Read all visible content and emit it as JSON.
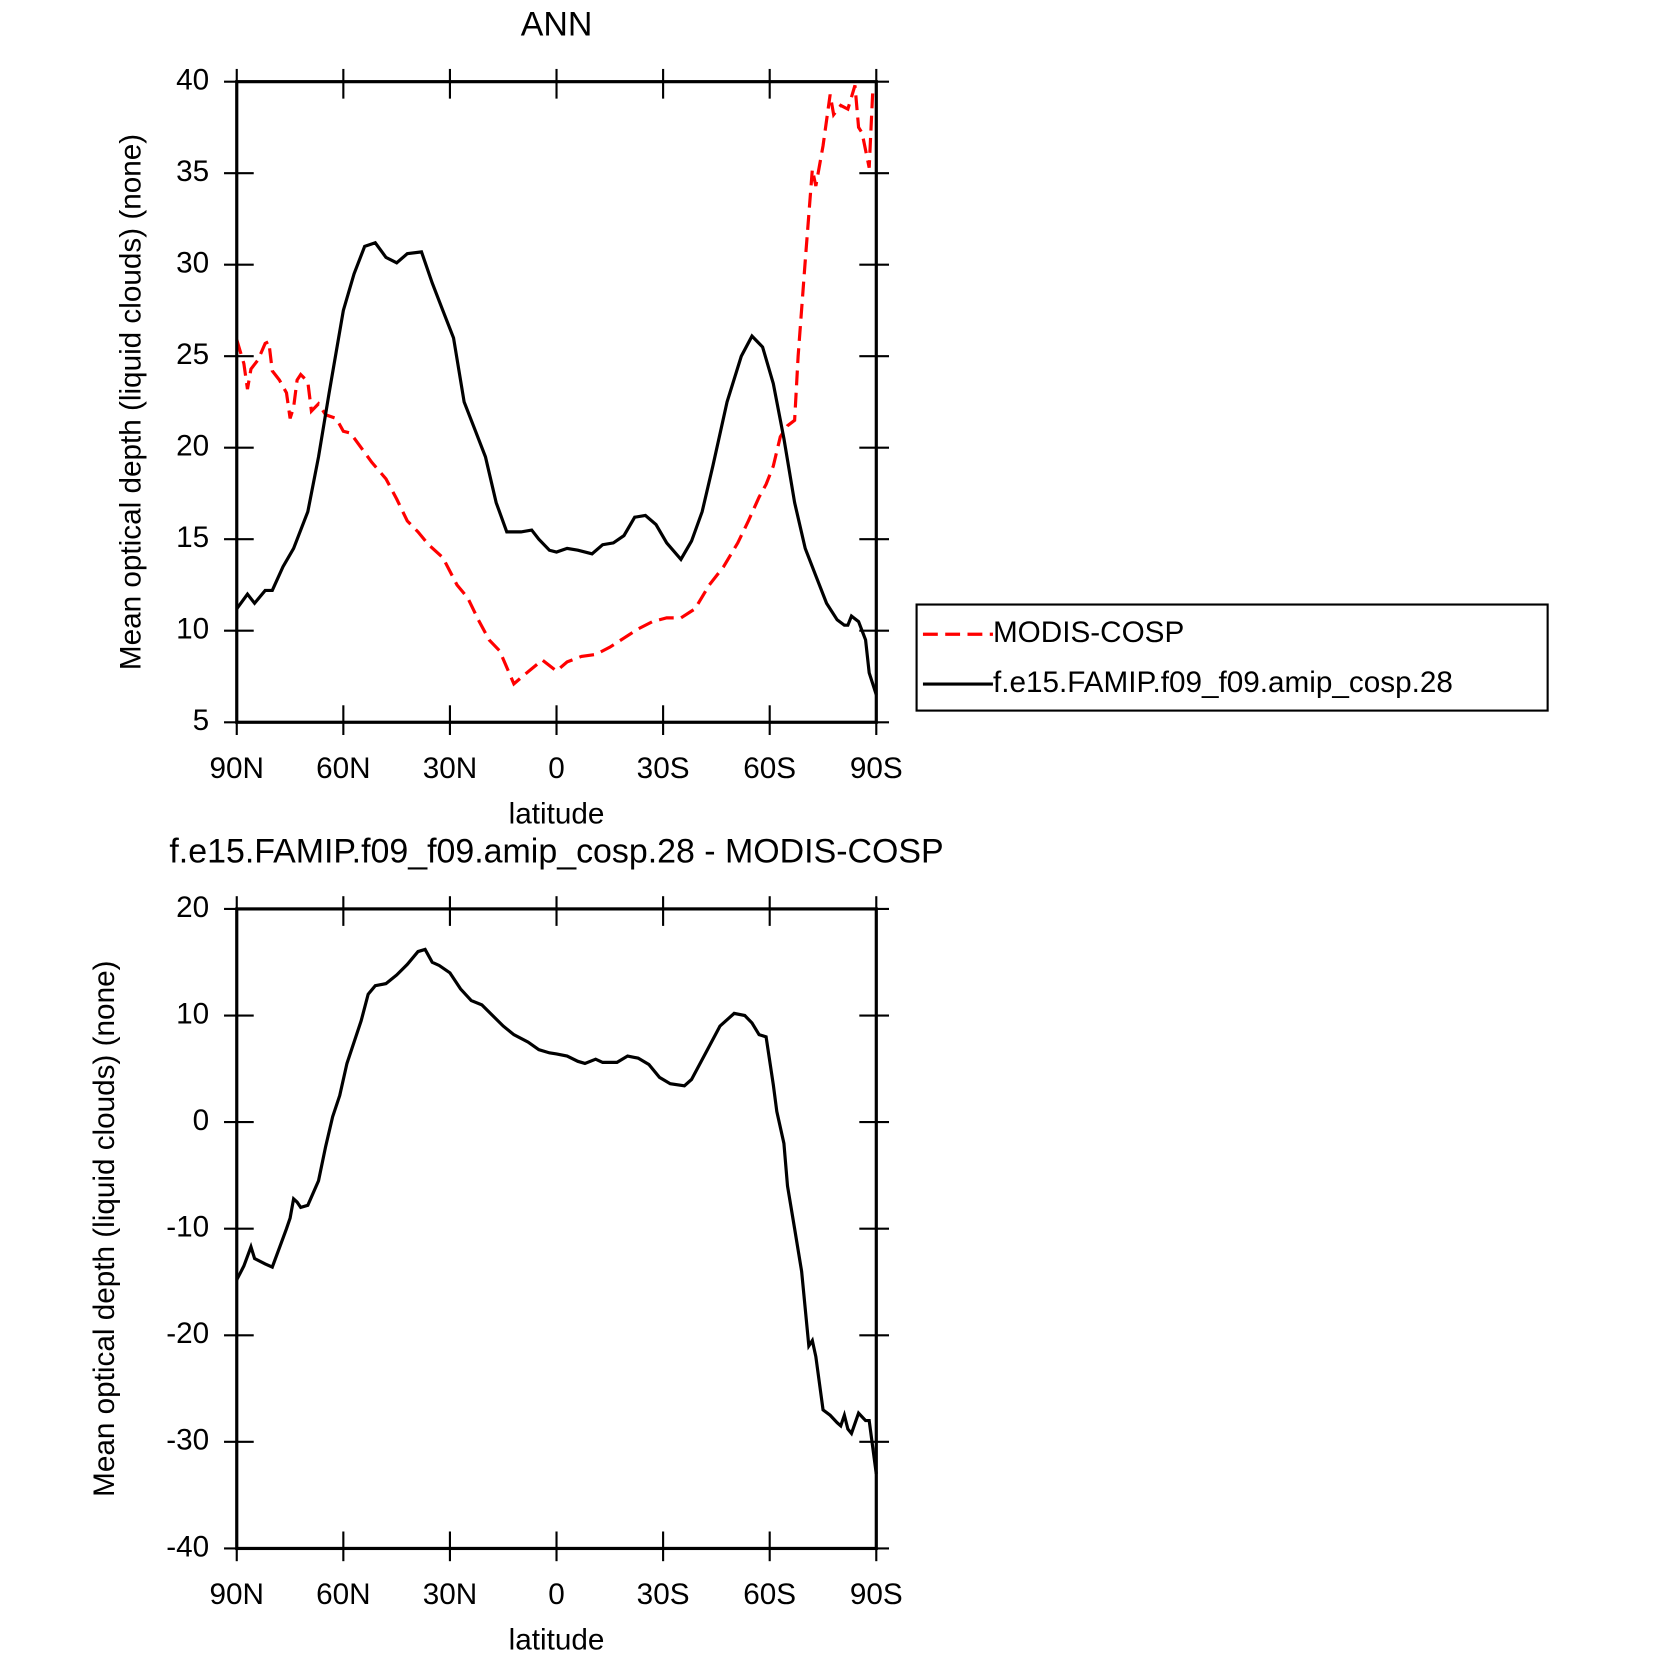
{
  "chart_data": [
    {
      "type": "line",
      "title": "ANN",
      "xlabel": "latitude",
      "ylabel": "Mean optical depth (liquid clouds) (none)",
      "xlim": [
        90,
        -90
      ],
      "xticks": [
        {
          "value": 90,
          "label": "90N"
        },
        {
          "value": 60,
          "label": "60N"
        },
        {
          "value": 30,
          "label": "30N"
        },
        0,
        {
          "value": -30,
          "label": "30S"
        },
        {
          "value": -60,
          "label": "60S"
        },
        {
          "value": -90,
          "label": "90S"
        }
      ],
      "ylim": [
        5,
        40
      ],
      "yticks": [
        5,
        10,
        15,
        20,
        25,
        30,
        35,
        40
      ],
      "legend": "right",
      "series": [
        {
          "name": "MODIS-COSP",
          "color": "#ff0000",
          "dashed": true,
          "x": [
            90,
            88,
            87,
            86,
            84,
            82,
            81,
            80,
            78,
            76,
            75,
            74,
            73,
            72,
            70,
            69,
            67,
            65,
            62,
            60,
            58,
            55,
            52,
            48,
            45,
            42,
            39,
            36,
            32,
            28,
            25,
            22,
            19,
            16,
            12,
            9,
            4,
            0,
            -3,
            -7,
            -11,
            -15,
            -19,
            -23,
            -27,
            -31,
            -35,
            -39,
            -43,
            -47,
            -51,
            -54,
            -57,
            -59,
            -61,
            -63,
            -65,
            -67,
            -68,
            -70,
            -72,
            -73,
            -75,
            -77,
            -78,
            -80,
            -82,
            -84,
            -85,
            -86,
            -88,
            -89,
            -90
          ],
          "values": [
            25.9,
            24.6,
            23.2,
            24.3,
            24.8,
            25.7,
            25.8,
            24.2,
            23.7,
            23.0,
            21.6,
            22.2,
            23.7,
            24.0,
            23.6,
            22.0,
            22.4,
            21.8,
            21.6,
            20.9,
            20.8,
            20.0,
            19.2,
            18.3,
            17.2,
            16.0,
            15.4,
            14.7,
            14.0,
            12.5,
            11.8,
            10.6,
            9.5,
            8.9,
            7.1,
            7.6,
            8.4,
            7.8,
            8.3,
            8.6,
            8.7,
            9.1,
            9.6,
            10.1,
            10.5,
            10.7,
            10.7,
            11.2,
            12.5,
            13.5,
            14.8,
            16.0,
            17.3,
            18.0,
            19.0,
            20.6,
            21.2,
            21.5,
            25.0,
            30.2,
            35.2,
            34.3,
            36.5,
            39.3,
            38.2,
            38.7,
            38.5,
            39.8,
            37.5,
            37.2,
            35.3,
            39.4,
            39.3
          ]
        },
        {
          "name": "f.e15.FAMIP.f09_f09.amip_cosp.28",
          "color": "#000000",
          "dashed": false,
          "x": [
            90,
            87,
            85,
            82,
            80,
            77,
            74,
            70,
            67,
            64,
            60,
            57,
            54,
            51,
            48,
            45,
            42,
            38,
            35,
            32,
            29,
            26,
            23,
            20,
            17,
            14,
            10,
            7,
            5,
            2,
            0,
            -3,
            -6,
            -10,
            -13,
            -16,
            -19,
            -22,
            -25,
            -28,
            -31,
            -35,
            -38,
            -41,
            -44,
            -48,
            -52,
            -55,
            -58,
            -61,
            -64,
            -67,
            -70,
            -73,
            -76,
            -79,
            -81,
            -82,
            -83,
            -85,
            -87,
            -88,
            -90
          ],
          "values": [
            11.2,
            12.0,
            11.5,
            12.2,
            12.2,
            13.5,
            14.5,
            16.5,
            19.5,
            23.0,
            27.5,
            29.5,
            31.0,
            31.2,
            30.4,
            30.1,
            30.6,
            30.7,
            29.0,
            27.5,
            26.0,
            22.5,
            21.0,
            19.5,
            17.0,
            15.4,
            15.4,
            15.5,
            15.0,
            14.4,
            14.3,
            14.5,
            14.4,
            14.2,
            14.7,
            14.8,
            15.2,
            16.2,
            16.3,
            15.8,
            14.8,
            13.9,
            14.9,
            16.5,
            19.0,
            22.5,
            25.0,
            26.1,
            25.5,
            23.5,
            20.5,
            17.0,
            14.5,
            13.0,
            11.5,
            10.6,
            10.3,
            10.3,
            10.8,
            10.5,
            9.5,
            7.7,
            6.5
          ]
        }
      ]
    },
    {
      "type": "line",
      "title": "f.e15.FAMIP.f09_f09.amip_cosp.28 - MODIS-COSP",
      "xlabel": "latitude",
      "ylabel": "Mean optical depth (liquid clouds) (none)",
      "xlim": [
        90,
        -90
      ],
      "xticks": [
        {
          "value": 90,
          "label": "90N"
        },
        {
          "value": 60,
          "label": "60N"
        },
        {
          "value": 30,
          "label": "30N"
        },
        0,
        {
          "value": -30,
          "label": "30S"
        },
        {
          "value": -60,
          "label": "60S"
        },
        {
          "value": -90,
          "label": "90S"
        }
      ],
      "ylim": [
        -40,
        20
      ],
      "yticks": [
        -40,
        -30,
        -20,
        -10,
        0,
        10,
        20
      ],
      "series": [
        {
          "color": "#000000",
          "dashed": false,
          "x": [
            90,
            88,
            86,
            85,
            82,
            80,
            78,
            76,
            75,
            74,
            73,
            72,
            70,
            67,
            65,
            63,
            61,
            59,
            57,
            55,
            53,
            51,
            48,
            45,
            42,
            39,
            37,
            35,
            33,
            30,
            27,
            24,
            21,
            18,
            15,
            12,
            8,
            5,
            2,
            0,
            -3,
            -6,
            -8,
            -11,
            -13,
            -17,
            -20,
            -23,
            -26,
            -29,
            -32,
            -36,
            -38,
            -42,
            -46,
            -50,
            -53,
            -55,
            -57,
            -59,
            -61,
            -62,
            -64,
            -65,
            -67,
            -69,
            -71,
            -72,
            -73,
            -75,
            -77,
            -79,
            -80,
            -81,
            -82,
            -83,
            -85,
            -87,
            -88,
            -90
          ],
          "values": [
            -14.8,
            -13.5,
            -11.7,
            -12.8,
            -13.3,
            -13.6,
            -11.8,
            -10.0,
            -9.0,
            -7.2,
            -7.5,
            -8.0,
            -7.8,
            -5.5,
            -2.3,
            0.5,
            2.5,
            5.5,
            7.5,
            9.5,
            12.0,
            12.8,
            13.0,
            13.8,
            14.8,
            16.0,
            16.2,
            15.0,
            14.7,
            14.0,
            12.5,
            11.4,
            11.0,
            10.0,
            9.0,
            8.2,
            7.5,
            6.8,
            6.5,
            6.4,
            6.2,
            5.7,
            5.5,
            5.9,
            5.6,
            5.6,
            6.2,
            6.0,
            5.4,
            4.2,
            3.6,
            3.4,
            4.0,
            6.5,
            9.0,
            10.2,
            10.0,
            9.3,
            8.2,
            8.0,
            3.5,
            1.0,
            -2.0,
            -6.0,
            -10.0,
            -14.0,
            -21.0,
            -20.5,
            -22.0,
            -27.0,
            -27.5,
            -28.2,
            -28.5,
            -27.5,
            -28.8,
            -29.2,
            -27.3,
            -28.0,
            -28.0,
            -33.0
          ]
        }
      ]
    }
  ]
}
